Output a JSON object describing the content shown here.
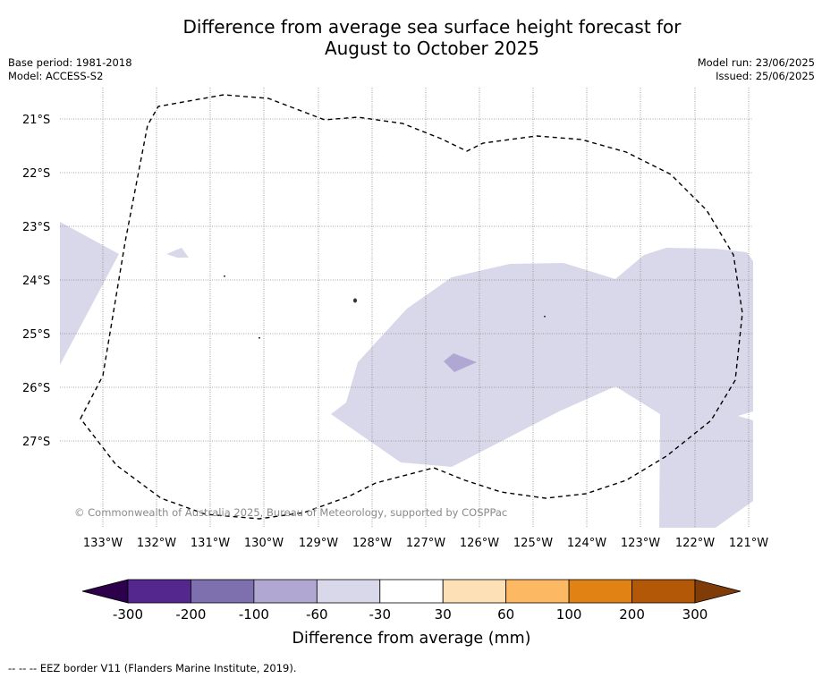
{
  "title_line1": "Difference from average sea surface height forecast for",
  "title_line2": "August to October 2025",
  "base_period": "Base period: 1981-2018",
  "model": "Model: ACCESS-S2",
  "model_run": "Model run: 23/06/2025",
  "issued": "Issued: 25/06/2025",
  "copyright": "© Commonwealth of Australia 2025, Bureau of Meteorology, supported by COSPPac",
  "lat_labels": [
    "21°S",
    "22°S",
    "23°S",
    "24°S",
    "25°S",
    "26°S",
    "27°S"
  ],
  "lon_labels": [
    "133°W",
    "132°W",
    "131°W",
    "130°W",
    "129°W",
    "128°W",
    "127°W",
    "126°W",
    "125°W",
    "124°W",
    "123°W",
    "122°W",
    "121°W"
  ],
  "colorbar": {
    "label": "Difference from average (mm)",
    "ticks": [
      "-300",
      "-200",
      "-100",
      "-60",
      "-30",
      "30",
      "60",
      "100",
      "200",
      "300"
    ],
    "colors": [
      "#54278f",
      "#7e6fae",
      "#b0a8d2",
      "#d9d8ea",
      "#ffffff",
      "#fee0b6",
      "#fdb863",
      "#e08214",
      "#b35806"
    ],
    "under_color": "#2d004b",
    "over_color": "#7f3b08"
  },
  "anomaly_fill_color": "#d9d8ea",
  "anomaly_dark_color": "#b0a8d2",
  "eez_legend": "--  --  -- EEZ border V11 (Flanders Marine Institute, 2019)."
}
